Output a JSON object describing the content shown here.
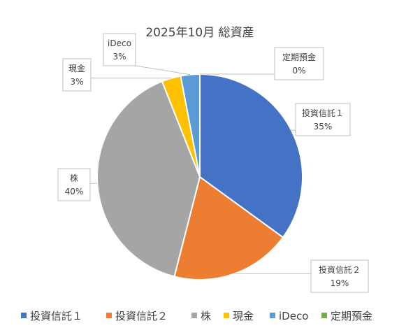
{
  "chart_data": {
    "type": "pie",
    "title": "2025年10月 総資産",
    "categories": [
      "投資信託１",
      "投資信託２",
      "株",
      "現金",
      "iDeco",
      "定期預金"
    ],
    "values": [
      35,
      19,
      40,
      3,
      3,
      0
    ],
    "colors": [
      "#4472C4",
      "#ED7D31",
      "#A5A5A5",
      "#FFC000",
      "#5B9BD5",
      "#70AD47"
    ],
    "data_labels": [
      {
        "name": "投資信託１",
        "pct": "35%"
      },
      {
        "name": "投資信託２",
        "pct": "19%"
      },
      {
        "name": "株",
        "pct": "40%"
      },
      {
        "name": "現金",
        "pct": "3%"
      },
      {
        "name": "iDeco",
        "pct": "3%"
      },
      {
        "name": "定期預金",
        "pct": "0%"
      }
    ],
    "legend": {
      "placement": "bottom",
      "entries": [
        "投資信託１",
        "投資信託２",
        "株",
        "現金",
        "iDeco",
        "定期預金"
      ]
    }
  }
}
